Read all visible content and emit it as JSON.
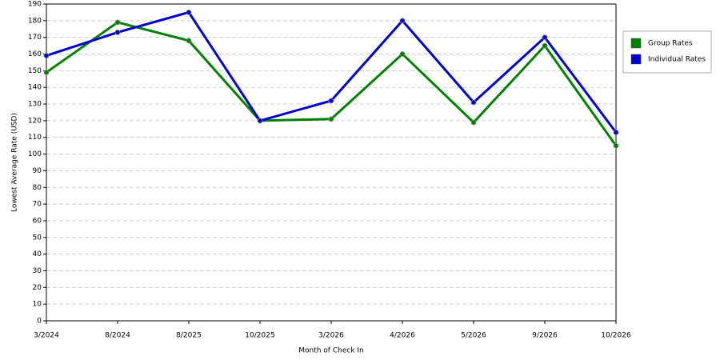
{
  "chart_data": {
    "type": "line",
    "x_label": "Month of Check In",
    "y_label": "Lowest Average Rate (USD)",
    "categories": [
      "3/2024",
      "8/2024",
      "8/2025",
      "10/2025",
      "3/2026",
      "4/2026",
      "5/2026",
      "9/2026",
      "10/2026"
    ],
    "series": [
      {
        "name": "Group Rates",
        "color": "#008000",
        "values": [
          149,
          179,
          168,
          120,
          121,
          160,
          119,
          165,
          105
        ]
      },
      {
        "name": "Individual Rates",
        "color": "#0000cc",
        "values": [
          159,
          173,
          185,
          120,
          132,
          180,
          131,
          170,
          113
        ]
      }
    ],
    "ylim": [
      0,
      190
    ],
    "yticks": [
      0,
      10,
      20,
      30,
      40,
      50,
      60,
      70,
      80,
      90,
      100,
      110,
      120,
      130,
      140,
      150,
      160,
      170,
      180,
      190
    ],
    "grid": true,
    "legend": "right"
  }
}
